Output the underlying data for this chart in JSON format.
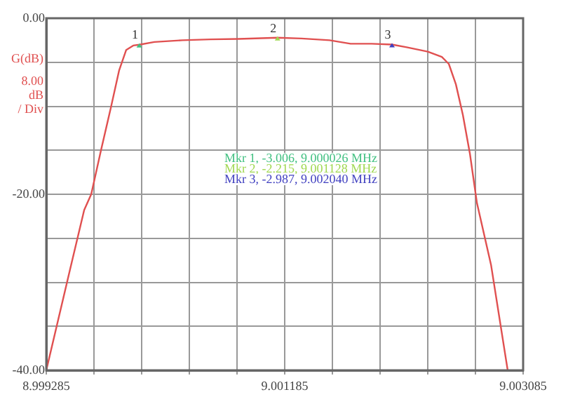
{
  "chart_data": {
    "type": "line",
    "ylabel": "G(dB)",
    "x": [
      8.999285,
      8.999475,
      8.999587,
      8.999643,
      8.999721,
      8.999799,
      8.999866,
      8.999922,
      8.999978,
      9.000026,
      9.000146,
      9.000369,
      9.000593,
      9.000816,
      9.00104,
      9.001128,
      9.001319,
      9.001543,
      9.00171,
      9.001878,
      9.00204,
      9.002157,
      9.002325,
      9.002437,
      9.002493,
      9.002549,
      9.002605,
      9.002661,
      9.002717,
      9.002829,
      9.002962
    ],
    "series": [
      {
        "color": "#e05050",
        "values": [
          -40,
          -28.5,
          -21.8,
          -20,
          -15,
          -10.2,
          -5.9,
          -3.6,
          -3.1,
          -3.006,
          -2.7,
          -2.5,
          -2.4,
          -2.35,
          -2.25,
          -2.215,
          -2.3,
          -2.5,
          -2.9,
          -2.9,
          -2.987,
          -3.3,
          -3.8,
          -4.4,
          -5.2,
          -7.5,
          -11,
          -15.4,
          -21,
          -28,
          -40
        ]
      }
    ],
    "xlim": [
      8.999285,
      9.003085
    ],
    "xticks": [
      {
        "value": 8.999285,
        "label": "8.999285"
      },
      {
        "value": 8.999665,
        "label": null
      },
      {
        "value": 9.000045,
        "label": null
      },
      {
        "value": 9.000425,
        "label": null
      },
      {
        "value": 9.000805,
        "label": null
      },
      {
        "value": 9.001185,
        "label": "9.001185"
      },
      {
        "value": 9.001565,
        "label": null
      },
      {
        "value": 9.001945,
        "label": null
      },
      {
        "value": 9.002325,
        "label": null
      },
      {
        "value": 9.002705,
        "label": null
      },
      {
        "value": 9.003085,
        "label": "9.003085"
      }
    ],
    "ylim": [
      -40,
      0
    ],
    "yticks": [
      {
        "value": -40,
        "label": "-40.00"
      },
      {
        "value": -35,
        "label": null
      },
      {
        "value": -30,
        "label": null
      },
      {
        "value": -25,
        "label": null
      },
      {
        "value": -20,
        "label": "-20.00"
      },
      {
        "value": -15,
        "label": null
      },
      {
        "value": -10,
        "label": null
      },
      {
        "value": -5,
        "label": null
      },
      {
        "value": 0,
        "label": "0.00"
      }
    ],
    "grid": true,
    "legend": false,
    "marker": "none",
    "line_style": "solid",
    "annotations": [
      {
        "text": "1",
        "x": 9.000026,
        "y": -3.006
      },
      {
        "text": "2",
        "x": 9.001128,
        "y": -2.215
      },
      {
        "text": "3",
        "x": 9.00204,
        "y": -2.987
      },
      "8.00\ndB\n/ Div",
      "Mkr 1, -3.006, 9.000026 MHz",
      "Mkr 2, -2.215, 9.001128 MHz",
      "Mkr 3, -2.987, 9.002040 MHz"
    ]
  }
}
